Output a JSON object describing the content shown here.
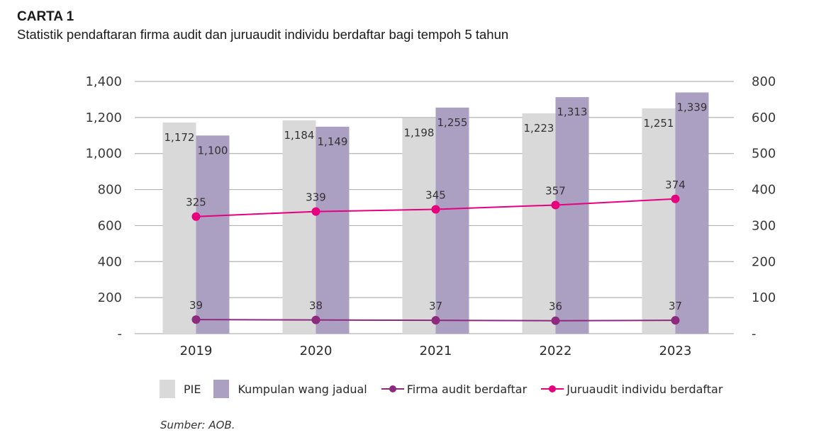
{
  "header": {
    "title": "CARTA 1",
    "subtitle": "Statistik pendaftaran firma audit dan juruaudit individu berdaftar bagi tempoh 5 tahun"
  },
  "source": "Sumber: AOB.",
  "colors": {
    "pie": "#d9d9d9",
    "kumpulan": "#ab9fc2",
    "firma": "#8e2a7e",
    "juruaudit": "#e6007e",
    "grid": "#b3b3b3"
  },
  "chart_data": {
    "type": "bar",
    "title": "CARTA 1",
    "subtitle": "Statistik pendaftaran firma audit dan juruaudit individu berdaftar bagi tempoh 5 tahun",
    "xlabel": "",
    "ylabel": "",
    "categories": [
      "2019",
      "2020",
      "2021",
      "2022",
      "2023"
    ],
    "left_axis": {
      "ylim": [
        0,
        1400
      ],
      "ticks": [
        0,
        200,
        400,
        600,
        800,
        1000,
        1200,
        1400
      ],
      "tick_labels": [
        "-",
        "200",
        "400",
        "600",
        "800",
        "1,000",
        "1,200",
        "1,400"
      ]
    },
    "right_axis": {
      "ticks": [
        0,
        100,
        200,
        300,
        400,
        500,
        600,
        800
      ],
      "tick_labels": [
        "-",
        "100",
        "200",
        "300",
        "400",
        "500",
        "600",
        "800"
      ]
    },
    "grid": true,
    "legend_position": "bottom",
    "series": [
      {
        "name": "PIE",
        "type": "bar",
        "axis": "left",
        "values": [
          1172,
          1184,
          1198,
          1223,
          1251
        ],
        "labels": [
          "1,172",
          "1,184",
          "1,198",
          "1,223",
          "1,251"
        ]
      },
      {
        "name": "Kumpulan wang jadual",
        "type": "bar",
        "axis": "left",
        "values": [
          1100,
          1149,
          1255,
          1313,
          1339
        ],
        "labels": [
          "1,100",
          "1,149",
          "1,255",
          "1,313",
          "1,339"
        ]
      },
      {
        "name": "Firma audit berdaftar",
        "type": "line",
        "axis": "right",
        "values": [
          39,
          38,
          37,
          36,
          37
        ],
        "labels": [
          "39",
          "38",
          "37",
          "36",
          "37"
        ]
      },
      {
        "name": "Juruaudit individu berdaftar",
        "type": "line",
        "axis": "right",
        "values": [
          325,
          339,
          345,
          357,
          374
        ],
        "labels": [
          "325",
          "339",
          "345",
          "357",
          "374"
        ]
      }
    ]
  }
}
